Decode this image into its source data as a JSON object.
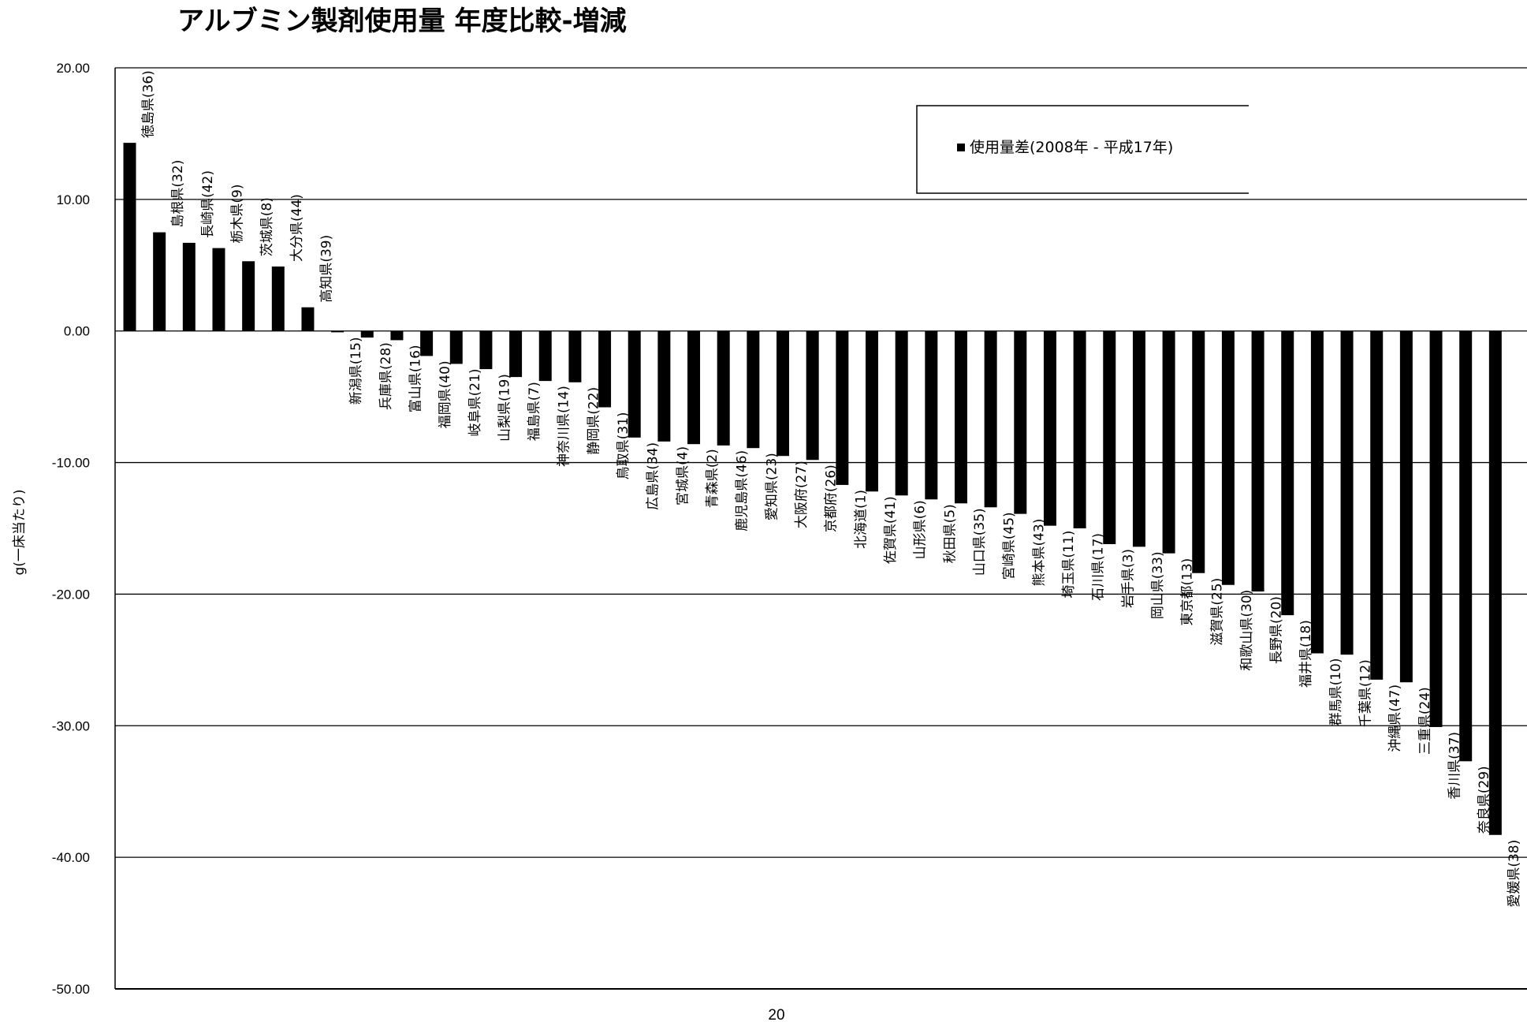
{
  "chart_data": {
    "type": "bar",
    "title": "アルブミン製剤使用量 年度比較-増減",
    "xlabel": "",
    "ylabel": "g(一床当たり)",
    "ylim": [
      -50,
      20
    ],
    "yticks": [
      "20.00",
      "10.00",
      "0.00",
      "-10.00",
      "-20.00",
      "-30.00",
      "-40.00",
      "-50.00"
    ],
    "grid": true,
    "legend_position": "top-right",
    "bar_color": "#000000",
    "series": [
      {
        "name": "使用量差(2008年 - 平成17年)",
        "values": [
          14.3,
          7.5,
          6.7,
          6.3,
          5.3,
          4.9,
          1.8,
          -0.1,
          -0.5,
          -0.7,
          -1.9,
          -2.5,
          -2.9,
          -3.5,
          -3.8,
          -3.9,
          -5.8,
          -8.1,
          -8.4,
          -8.6,
          -8.7,
          -8.9,
          -9.5,
          -9.8,
          -11.7,
          -12.2,
          -12.5,
          -12.8,
          -13.1,
          -13.4,
          -13.9,
          -14.8,
          -15.0,
          -16.2,
          -16.4,
          -16.9,
          -18.4,
          -19.3,
          -19.8,
          -21.6,
          -24.5,
          -24.6,
          -26.5,
          -26.7,
          -30.1,
          -32.7,
          -38.3
        ]
      }
    ],
    "categories": [
      "徳島県(36)",
      "島根県(32)",
      "長崎県(42)",
      "栃木県(9)",
      "茨城県(8)",
      "大分県(44)",
      "高知県(39)",
      "新潟県(15)",
      "兵庫県(28)",
      "富山県(16)",
      "福岡県(40)",
      "岐阜県(21)",
      "山梨県(19)",
      "福島県(7)",
      "神奈川県(14)",
      "静岡県(22)",
      "鳥取県(31)",
      "広島県(34)",
      "宮城県(4)",
      "青森県(2)",
      "鹿児島県(46)",
      "愛知県(23)",
      "大阪府(27)",
      "京都府(26)",
      "北海道(1)",
      "佐賀県(41)",
      "山形県(6)",
      "秋田県(5)",
      "山口県(35)",
      "宮崎県(45)",
      "熊本県(43)",
      "埼玉県(11)",
      "石川県(17)",
      "岩手県(3)",
      "岡山県(33)",
      "東京都(13)",
      "滋賀県(25)",
      "和歌山県(30)",
      "長野県(20)",
      "福井県(18)",
      "群馬県(10)",
      "千葉県(12)",
      "沖縄県(47)",
      "三重県(24)",
      "香川県(37)",
      "奈良県(29)",
      "愛媛県(38)"
    ]
  },
  "page": {
    "number": "20"
  }
}
